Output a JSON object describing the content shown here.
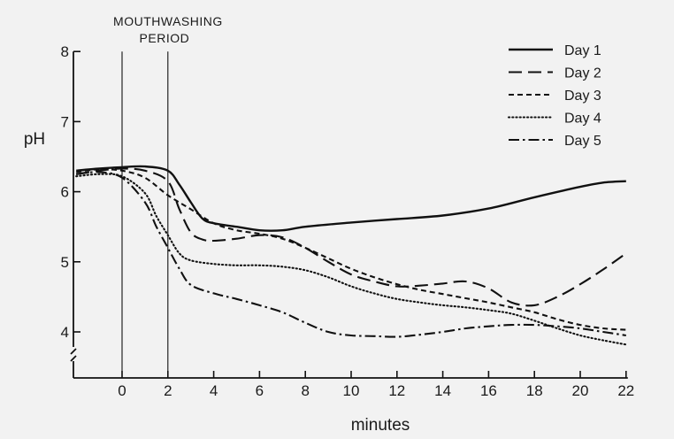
{
  "chart_data": {
    "type": "line",
    "xlabel": "minutes",
    "ylabel": "pH",
    "xlim": [
      -2,
      22
    ],
    "ylim": [
      4,
      8
    ],
    "x_ticks": [
      0,
      2,
      4,
      6,
      8,
      10,
      12,
      14,
      16,
      18,
      20,
      22
    ],
    "y_ticks": [
      4,
      5,
      6,
      7,
      8
    ],
    "y_axis_break": true,
    "grid": false,
    "legend_position": "top-right",
    "annotation": {
      "lines": [
        "MOUTHWASHING",
        "PERIOD"
      ],
      "x_start": 0,
      "x_end": 2
    },
    "series": [
      {
        "name": "Day 1",
        "dash": "solid",
        "color": "#111111",
        "points": [
          [
            -2,
            6.3
          ],
          [
            -1,
            6.33
          ],
          [
            0,
            6.35
          ],
          [
            1,
            6.36
          ],
          [
            2,
            6.3
          ],
          [
            2.5,
            6.1
          ],
          [
            3,
            5.85
          ],
          [
            3.5,
            5.62
          ],
          [
            4,
            5.55
          ],
          [
            5,
            5.5
          ],
          [
            6,
            5.45
          ],
          [
            7,
            5.45
          ],
          [
            8,
            5.5
          ],
          [
            10,
            5.56
          ],
          [
            12,
            5.61
          ],
          [
            14,
            5.66
          ],
          [
            16,
            5.76
          ],
          [
            18,
            5.92
          ],
          [
            20,
            6.07
          ],
          [
            21,
            6.13
          ],
          [
            22,
            6.15
          ]
        ]
      },
      {
        "name": "Day 2",
        "dash": "long-dash",
        "color": "#111111",
        "points": [
          [
            -2,
            6.25
          ],
          [
            -1,
            6.3
          ],
          [
            0,
            6.33
          ],
          [
            1,
            6.3
          ],
          [
            2,
            6.15
          ],
          [
            2.5,
            5.75
          ],
          [
            3,
            5.42
          ],
          [
            3.5,
            5.32
          ],
          [
            4,
            5.3
          ],
          [
            5,
            5.33
          ],
          [
            6,
            5.38
          ],
          [
            7,
            5.35
          ],
          [
            8,
            5.2
          ],
          [
            9,
            5.0
          ],
          [
            10,
            4.82
          ],
          [
            11,
            4.72
          ],
          [
            12,
            4.65
          ],
          [
            13,
            4.66
          ],
          [
            14,
            4.69
          ],
          [
            15,
            4.72
          ],
          [
            16,
            4.62
          ],
          [
            17,
            4.42
          ],
          [
            18,
            4.38
          ],
          [
            19,
            4.5
          ],
          [
            20,
            4.68
          ],
          [
            21,
            4.89
          ],
          [
            22,
            5.12
          ]
        ]
      },
      {
        "name": "Day 3",
        "dash": "dashed",
        "color": "#111111",
        "points": [
          [
            -2,
            6.28
          ],
          [
            -1,
            6.32
          ],
          [
            0,
            6.3
          ],
          [
            1,
            6.2
          ],
          [
            2,
            5.95
          ],
          [
            3,
            5.75
          ],
          [
            4,
            5.55
          ],
          [
            5,
            5.45
          ],
          [
            6,
            5.4
          ],
          [
            7,
            5.33
          ],
          [
            8,
            5.2
          ],
          [
            9,
            5.05
          ],
          [
            10,
            4.9
          ],
          [
            11,
            4.78
          ],
          [
            12,
            4.68
          ],
          [
            13,
            4.6
          ],
          [
            14,
            4.54
          ],
          [
            15,
            4.48
          ],
          [
            16,
            4.42
          ],
          [
            17,
            4.35
          ],
          [
            18,
            4.28
          ],
          [
            19,
            4.18
          ],
          [
            20,
            4.1
          ],
          [
            21,
            4.05
          ],
          [
            22,
            4.03
          ]
        ]
      },
      {
        "name": "Day 4",
        "dash": "dotted",
        "color": "#111111",
        "points": [
          [
            -2,
            6.22
          ],
          [
            -1,
            6.25
          ],
          [
            0,
            6.22
          ],
          [
            1,
            5.98
          ],
          [
            1.5,
            5.65
          ],
          [
            2,
            5.38
          ],
          [
            2.5,
            5.12
          ],
          [
            3,
            5.02
          ],
          [
            4,
            4.97
          ],
          [
            5,
            4.95
          ],
          [
            6,
            4.95
          ],
          [
            7,
            4.93
          ],
          [
            8,
            4.88
          ],
          [
            9,
            4.78
          ],
          [
            10,
            4.65
          ],
          [
            11,
            4.55
          ],
          [
            12,
            4.47
          ],
          [
            13,
            4.42
          ],
          [
            14,
            4.38
          ],
          [
            15,
            4.35
          ],
          [
            16,
            4.31
          ],
          [
            17,
            4.26
          ],
          [
            18,
            4.16
          ],
          [
            19,
            4.05
          ],
          [
            20,
            3.95
          ],
          [
            21,
            3.88
          ],
          [
            22,
            3.82
          ]
        ]
      },
      {
        "name": "Day 5",
        "dash": "dash-dot",
        "color": "#111111",
        "points": [
          [
            -2,
            6.25
          ],
          [
            -1,
            6.28
          ],
          [
            0,
            6.2
          ],
          [
            1,
            5.85
          ],
          [
            1.5,
            5.5
          ],
          [
            2,
            5.2
          ],
          [
            2.5,
            4.9
          ],
          [
            3,
            4.67
          ],
          [
            4,
            4.55
          ],
          [
            5,
            4.47
          ],
          [
            6,
            4.38
          ],
          [
            7,
            4.28
          ],
          [
            8,
            4.13
          ],
          [
            9,
            4.0
          ],
          [
            10,
            3.95
          ],
          [
            11,
            3.94
          ],
          [
            12,
            3.93
          ],
          [
            13,
            3.96
          ],
          [
            14,
            4.0
          ],
          [
            15,
            4.05
          ],
          [
            16,
            4.08
          ],
          [
            17,
            4.1
          ],
          [
            18,
            4.1
          ],
          [
            19,
            4.08
          ],
          [
            20,
            4.05
          ],
          [
            21,
            4.0
          ],
          [
            22,
            3.95
          ]
        ]
      }
    ]
  }
}
